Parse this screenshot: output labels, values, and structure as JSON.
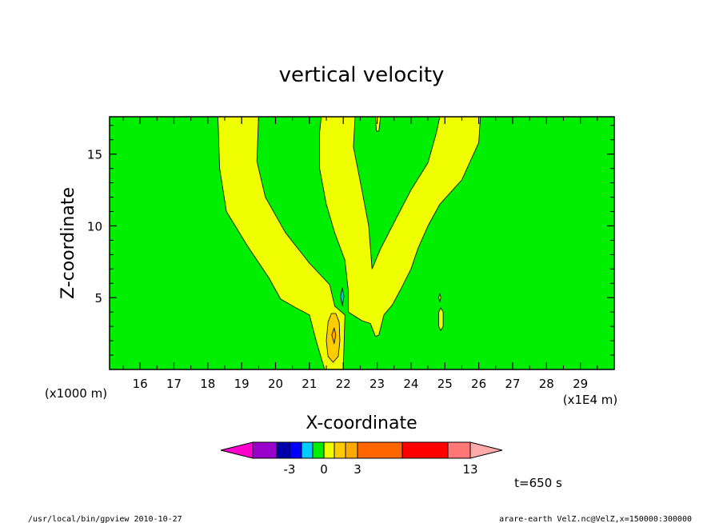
{
  "chart_data": {
    "type": "heatmap",
    "title": "vertical velocity",
    "xlabel": "X-coordinate",
    "ylabel": "Z-coordinate",
    "x_unit_label": "(x1E4 m)",
    "z_unit_label": "(x1000 m)",
    "xlim": [
      15.1,
      30.0
    ],
    "ylim": [
      0.0,
      17.6
    ],
    "x_ticks": [
      "16",
      "17",
      "18",
      "19",
      "20",
      "21",
      "22",
      "23",
      "24",
      "25",
      "26",
      "27",
      "28",
      "29"
    ],
    "y_ticks": [
      "5",
      "10",
      "15"
    ],
    "time_label": "t=650 s",
    "background_level_color": "#00ee00",
    "contour_regions": [
      {
        "name": "left-updraft-band",
        "level": "0 to 1",
        "color": "#f0ff00",
        "boundary": [
          [
            18.3,
            17.6
          ],
          [
            19.5,
            17.6
          ],
          [
            19.45,
            14.5
          ],
          [
            19.7,
            12.0
          ],
          [
            20.3,
            9.5
          ],
          [
            21.0,
            7.4
          ],
          [
            21.6,
            5.9
          ],
          [
            21.75,
            4.4
          ],
          [
            22.05,
            3.8
          ],
          [
            22.0,
            0.0
          ],
          [
            21.45,
            0.0
          ],
          [
            21.2,
            2.0
          ],
          [
            21.0,
            3.8
          ],
          [
            20.6,
            4.3
          ],
          [
            20.15,
            4.9
          ],
          [
            19.8,
            6.4
          ],
          [
            19.2,
            8.5
          ],
          [
            18.55,
            11.0
          ],
          [
            18.35,
            14.0
          ]
        ]
      },
      {
        "name": "central-updraft-band",
        "level": "0 to 1",
        "color": "#f0ff00",
        "boundary": [
          [
            21.35,
            17.6
          ],
          [
            22.35,
            17.6
          ],
          [
            22.3,
            15.5
          ],
          [
            22.55,
            12.5
          ],
          [
            22.75,
            10.0
          ],
          [
            22.8,
            8.5
          ],
          [
            22.85,
            7.0
          ],
          [
            23.1,
            8.4
          ],
          [
            23.6,
            10.7
          ],
          [
            24.0,
            12.5
          ],
          [
            24.5,
            14.4
          ],
          [
            24.75,
            16.5
          ],
          [
            24.85,
            17.6
          ],
          [
            26.05,
            17.6
          ],
          [
            26.0,
            15.8
          ],
          [
            25.5,
            13.2
          ],
          [
            24.85,
            11.5
          ],
          [
            24.5,
            10.0
          ],
          [
            24.2,
            8.4
          ],
          [
            24.0,
            7.0
          ],
          [
            23.7,
            5.6
          ],
          [
            23.45,
            4.5
          ],
          [
            23.2,
            3.8
          ],
          [
            23.05,
            2.4
          ],
          [
            22.95,
            2.3
          ],
          [
            22.8,
            3.2
          ],
          [
            22.55,
            3.4
          ],
          [
            22.35,
            3.7
          ],
          [
            22.15,
            4.0
          ],
          [
            22.15,
            5.4
          ],
          [
            22.05,
            7.6
          ],
          [
            21.75,
            9.5
          ],
          [
            21.5,
            11.5
          ],
          [
            21.3,
            14.0
          ],
          [
            21.3,
            16.5
          ]
        ]
      },
      {
        "name": "top-small-updraft",
        "level": "0 to 1",
        "color": "#f0ff00",
        "boundary": [
          [
            22.95,
            17.6
          ],
          [
            23.1,
            17.6
          ],
          [
            23.05,
            16.6
          ],
          [
            22.98,
            16.6
          ]
        ]
      },
      {
        "name": "right-small-updraft",
        "level": "0 to 1",
        "color": "#f0ff00",
        "boundary": [
          [
            24.88,
            4.3
          ],
          [
            24.95,
            4.0
          ],
          [
            24.95,
            3.0
          ],
          [
            24.88,
            2.7
          ],
          [
            24.82,
            3.0
          ],
          [
            24.82,
            4.0
          ]
        ]
      },
      {
        "name": "right-small-updraft-2",
        "level": "0 to 1",
        "color": "#f0ff00",
        "boundary": [
          [
            24.85,
            5.3
          ],
          [
            24.88,
            5.0
          ],
          [
            24.85,
            4.7
          ],
          [
            24.82,
            5.0
          ]
        ]
      },
      {
        "name": "core-updraft",
        "level": "1 to 2",
        "color": "#ffcc00",
        "boundary": [
          [
            21.78,
            3.9
          ],
          [
            21.88,
            3.3
          ],
          [
            21.9,
            2.0
          ],
          [
            21.85,
            0.9
          ],
          [
            21.7,
            0.5
          ],
          [
            21.55,
            0.9
          ],
          [
            21.5,
            2.0
          ],
          [
            21.55,
            3.3
          ],
          [
            21.65,
            3.9
          ]
        ]
      },
      {
        "name": "core-updraft-inner",
        "level": "2 to 3",
        "color": "#ffaa00",
        "boundary": [
          [
            21.73,
            2.9
          ],
          [
            21.78,
            2.4
          ],
          [
            21.73,
            1.8
          ],
          [
            21.66,
            2.4
          ]
        ]
      },
      {
        "name": "small-downdraft",
        "level": "-1 to 0",
        "color": "#00cccc",
        "boundary": [
          [
            21.97,
            5.7
          ],
          [
            22.02,
            5.1
          ],
          [
            21.97,
            4.4
          ],
          [
            21.92,
            5.1
          ]
        ]
      }
    ],
    "colorbar": {
      "tick_labels": [
        "-3",
        "0",
        "3",
        "13"
      ],
      "colors": [
        "#ff00cc",
        "#9900cc",
        "#0000aa",
        "#0000ff",
        "#00ccff",
        "#00ee00",
        "#f0ff00",
        "#ffcc00",
        "#ffaa00",
        "#ff6600",
        "#ff0000",
        "#ff7777",
        "#ffaaaa"
      ]
    }
  },
  "footer": {
    "left": "/usr/local/bin/gpview   2010-10-27",
    "right": "arare-earth_VelZ.nc@VelZ,x=150000:300000"
  }
}
